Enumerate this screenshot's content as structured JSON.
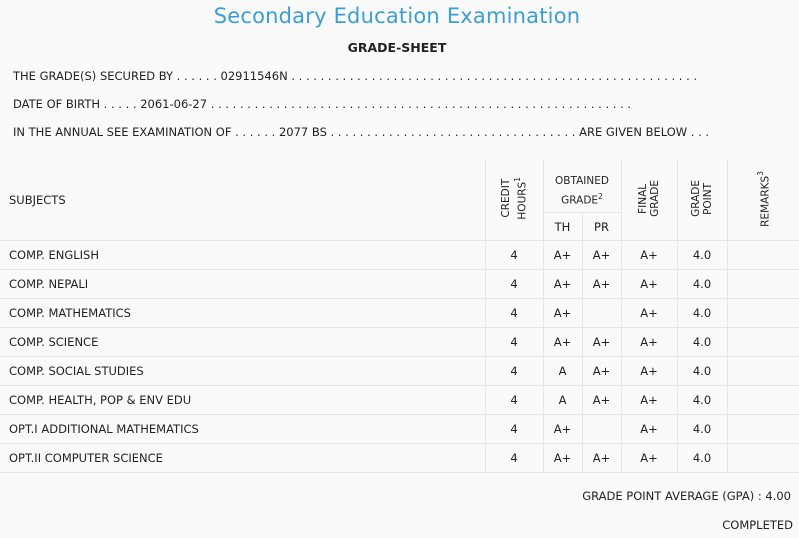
{
  "title": "Secondary Education Examination",
  "subtitle": "GRADE-SHEET",
  "info": {
    "secured_by": "THE GRADE(S) SECURED BY . . . . . . 02911546N . . . . . . . . . . . . . . . . . . . . . . . . . . . . . . . . . . . . . . . . . . . . . . . . . . . . . . . .",
    "dob": "DATE OF BIRTH . . . . . 2061-06-27 . . . . . . . . . . . . . . . . . . . . . . . . . . . . . . . . . . . . . . . . . . . . . . . . . . . . . . . . . .",
    "exam": "IN THE ANNUAL SEE EXAMINATION OF . . . . . . 2077 BS . . . . . . . . . . . . . . . . . . . . . . . . . . . . . . . . . . ARE GIVEN BELOW . . ."
  },
  "table": {
    "headers": {
      "subjects": "SUBJECTS",
      "credit_hours": "CREDIT\nHOURS",
      "credit_hours_sup": "1",
      "obtained_grade_line1": "OBTAINED",
      "obtained_grade_line2": "GRADE",
      "obtained_grade_sup": "2",
      "th": "TH",
      "pr": "PR",
      "final_grade": "FINAL\nGRADE",
      "grade_point": "GRADE\nPOINT",
      "remarks": "REMARKS",
      "remarks_sup": "3"
    },
    "rows": [
      {
        "subject": "COMP. ENGLISH",
        "credit": "4",
        "th": "A+",
        "pr": "A+",
        "final": "A+",
        "gp": "4.0",
        "remarks": ""
      },
      {
        "subject": "COMP. NEPALI",
        "credit": "4",
        "th": "A+",
        "pr": "A+",
        "final": "A+",
        "gp": "4.0",
        "remarks": ""
      },
      {
        "subject": "COMP. MATHEMATICS",
        "credit": "4",
        "th": "A+",
        "pr": "",
        "final": "A+",
        "gp": "4.0",
        "remarks": ""
      },
      {
        "subject": "COMP. SCIENCE",
        "credit": "4",
        "th": "A+",
        "pr": "A+",
        "final": "A+",
        "gp": "4.0",
        "remarks": ""
      },
      {
        "subject": "COMP. SOCIAL STUDIES",
        "credit": "4",
        "th": "A",
        "pr": "A+",
        "final": "A+",
        "gp": "4.0",
        "remarks": ""
      },
      {
        "subject": "COMP. HEALTH, POP & ENV EDU",
        "credit": "4",
        "th": "A",
        "pr": "A+",
        "final": "A+",
        "gp": "4.0",
        "remarks": ""
      },
      {
        "subject": "OPT.I ADDITIONAL MATHEMATICS",
        "credit": "4",
        "th": "A+",
        "pr": "",
        "final": "A+",
        "gp": "4.0",
        "remarks": ""
      },
      {
        "subject": "OPT.II COMPUTER SCIENCE",
        "credit": "4",
        "th": "A+",
        "pr": "A+",
        "final": "A+",
        "gp": "4.0",
        "remarks": ""
      }
    ]
  },
  "gpa": "GRADE POINT AVERAGE (GPA) : 4.00",
  "status": "COMPLETED"
}
